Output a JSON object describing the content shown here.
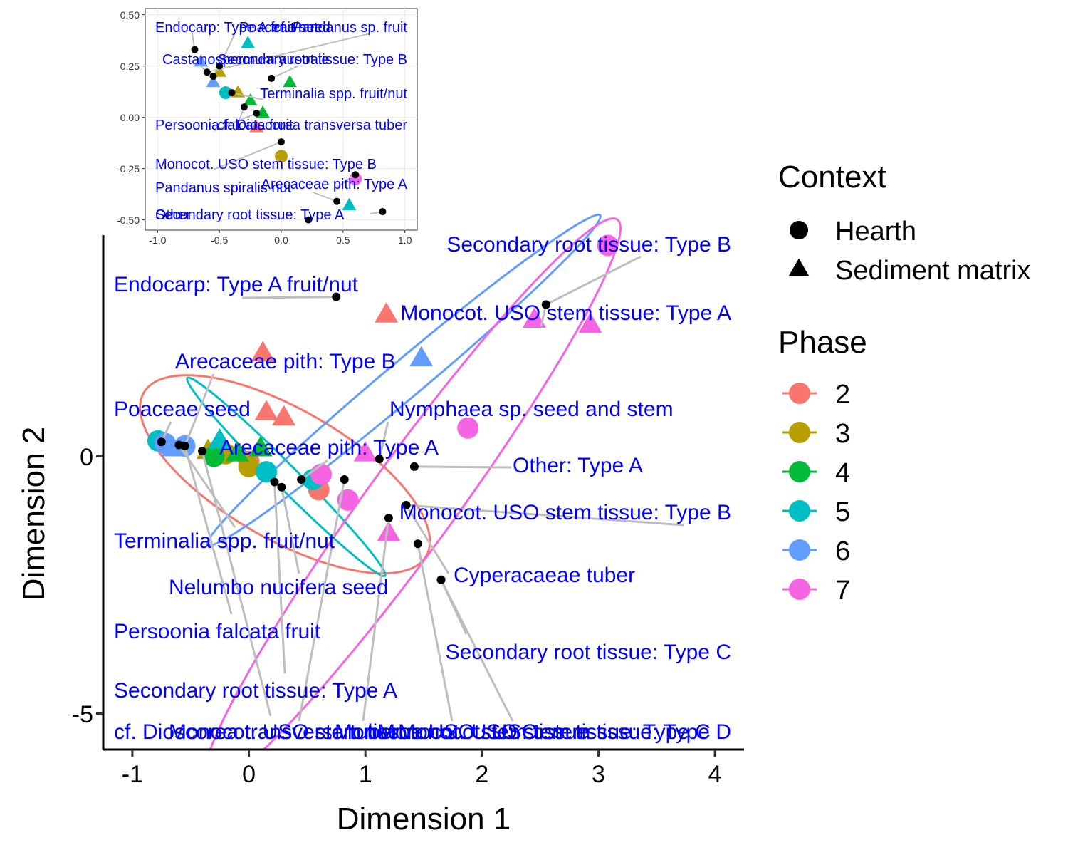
{
  "chart_data": [
    {
      "id": "main",
      "type": "scatter",
      "xlabel": "Dimension 1",
      "ylabel": "Dimension 2",
      "xlim": [
        -1.25,
        4.25
      ],
      "ylim": [
        -5.7,
        4.3
      ],
      "x_ticks": [
        -1,
        0,
        1,
        2,
        3,
        4
      ],
      "x_tick_labels": [
        "-1",
        "0",
        "1",
        "2",
        "3",
        "4"
      ],
      "y_ticks": [
        -5,
        0
      ],
      "y_tick_labels": [
        "-5",
        "0"
      ],
      "grid": false,
      "ellipses": [
        {
          "phase": "2",
          "cx": 0.31,
          "cy": -0.35,
          "rx": 1.4,
          "ry": 1.4,
          "angle": -30
        },
        {
          "phase": "5",
          "cx": 0.32,
          "cy": -0.4,
          "rx": 1.2,
          "ry": 0.25,
          "angle": -45
        },
        {
          "phase": "6",
          "cx": 1.33,
          "cy": 1.48,
          "rx": 2.2,
          "ry": 0.4,
          "angle": 40
        },
        {
          "phase": "7",
          "cx": 1.4,
          "cy": -0.9,
          "rx": 3.0,
          "ry": 0.95,
          "angle": 54
        }
      ],
      "series": [
        {
          "phase": "2",
          "context": "Sediment matrix",
          "x": [
            0.12,
            1.18,
            0.15,
            0.3
          ],
          "y": [
            2.0,
            2.75,
            0.85,
            0.75
          ]
        },
        {
          "phase": "2",
          "context": "Hearth",
          "x": [
            0.6,
            0.0
          ],
          "y": [
            -0.65,
            -0.1
          ]
        },
        {
          "phase": "3",
          "context": "Hearth",
          "x": [
            -0.2,
            0.0
          ],
          "y": [
            0.05,
            -0.2
          ]
        },
        {
          "phase": "3",
          "context": "Sediment matrix",
          "x": [
            -0.35
          ],
          "y": [
            0.1
          ]
        },
        {
          "phase": "4",
          "context": "Sediment matrix",
          "x": [
            0.1,
            -0.1
          ],
          "y": [
            0.15,
            0.05
          ]
        },
        {
          "phase": "4",
          "context": "Hearth",
          "x": [
            -0.3
          ],
          "y": [
            0.0
          ]
        },
        {
          "phase": "5",
          "context": "Hearth",
          "x": [
            -0.78,
            0.15,
            0.55
          ],
          "y": [
            0.3,
            -0.3,
            -0.45
          ]
        },
        {
          "phase": "5",
          "context": "Sediment matrix",
          "x": [
            -0.25
          ],
          "y": [
            0.3
          ]
        },
        {
          "phase": "6",
          "context": "Hearth",
          "x": [
            -0.72,
            -0.55
          ],
          "y": [
            0.25,
            0.2
          ]
        },
        {
          "phase": "6",
          "context": "Sediment matrix",
          "x": [
            1.48,
            -0.65
          ],
          "y": [
            1.9,
            0.15
          ]
        },
        {
          "phase": "7",
          "context": "Sediment matrix",
          "x": [
            2.45,
            2.93,
            1.0,
            1.2
          ],
          "y": [
            2.65,
            2.55,
            0.05,
            -1.5
          ]
        },
        {
          "phase": "7",
          "context": "Hearth",
          "x": [
            3.08,
            1.88,
            0.62,
            0.85
          ],
          "y": [
            4.1,
            0.55,
            -0.35,
            -0.85
          ]
        }
      ],
      "taxa_points": [
        {
          "label": "Secondary root tissue: Type B",
          "x": 2.55,
          "y": 2.95
        },
        {
          "label": "Endocarp: Type A fruit/nut",
          "x": 0.75,
          "y": 3.1
        },
        {
          "label": "Monocot. USO stem tissue: Type A",
          "x": 2.55,
          "y": 2.95
        },
        {
          "label": "Arecaceae pith: Type B",
          "x": -0.55,
          "y": 0.2
        },
        {
          "label": "Poaceae seed",
          "x": -0.75,
          "y": 0.28
        },
        {
          "label": "Nymphaea sp. seed and stem",
          "x": 1.12,
          "y": -0.05
        },
        {
          "label": "Arecaceae pith: Type A",
          "x": 0.45,
          "y": -0.45
        },
        {
          "label": "Other: Type A",
          "x": 1.42,
          "y": -0.2
        },
        {
          "label": "Monocot. USO stem tissue: Type B",
          "x": 1.35,
          "y": -0.95
        },
        {
          "label": "Terminalia spp. fruit/nut",
          "x": -0.6,
          "y": 0.22
        },
        {
          "label": "Cyperacaeae tuber",
          "x": 1.35,
          "y": -0.95
        },
        {
          "label": "Nelumbo nucifera seed",
          "x": 0.28,
          "y": -0.6
        },
        {
          "label": "Persoonia falcata fruit",
          "x": -0.55,
          "y": 0.2
        },
        {
          "label": "Secondary root tissue: Type C",
          "x": 1.65,
          "y": -2.4
        },
        {
          "label": "Secondary root tissue: Type A",
          "x": 0.22,
          "y": -0.5
        },
        {
          "label": "cf. Dioscorea transversa tuber",
          "x": -0.4,
          "y": 0.1
        },
        {
          "label": "Monocot. USO stem tissue",
          "x": 0.82,
          "y": -0.45
        },
        {
          "label": "Monocot. USO stem tissue",
          "x": 1.2,
          "y": -1.2
        },
        {
          "label": "Monocot. USO stem tissue: Type C",
          "x": 1.45,
          "y": -1.7
        },
        {
          "label": "Monocot. USO stem tissue: Type D",
          "x": 1.65,
          "y": -2.4
        }
      ]
    },
    {
      "id": "inset",
      "type": "scatter",
      "xlim": [
        -1.1,
        1.1
      ],
      "ylim": [
        -0.55,
        0.53
      ],
      "x_ticks": [
        -1.0,
        -0.5,
        0.0,
        0.5,
        1.0
      ],
      "x_tick_labels": [
        "-1.0",
        "-0.5",
        "0.0",
        "0.5",
        "1.0"
      ],
      "y_ticks": [
        0.5,
        0.25,
        0.0,
        -0.25,
        -0.5
      ],
      "y_tick_labels": [
        "0.50",
        "0.25",
        "0.00",
        "-0.25",
        "-0.50"
      ],
      "grid": true,
      "series": [
        {
          "phase": "6",
          "context": "Sediment matrix",
          "x": [
            -0.65,
            -0.55
          ],
          "y": [
            0.27,
            0.17
          ]
        },
        {
          "phase": "3",
          "context": "Sediment matrix",
          "x": [
            -0.5,
            -0.35
          ],
          "y": [
            0.22,
            0.12
          ]
        },
        {
          "phase": "5",
          "context": "Sediment matrix",
          "x": [
            -0.27,
            0.55
          ],
          "y": [
            0.36,
            -0.43
          ]
        },
        {
          "phase": "4",
          "context": "Sediment matrix",
          "x": [
            0.07,
            -0.25,
            -0.15
          ],
          "y": [
            0.17,
            0.08,
            0.02
          ]
        },
        {
          "phase": "2",
          "context": "Sediment matrix",
          "x": [
            -0.2
          ],
          "y": [
            -0.05
          ]
        },
        {
          "phase": "3",
          "context": "Hearth",
          "x": [
            0.0
          ],
          "y": [
            -0.19
          ]
        },
        {
          "phase": "7",
          "context": "Hearth",
          "x": [
            0.6
          ],
          "y": [
            -0.3
          ]
        },
        {
          "phase": "5",
          "context": "Hearth",
          "x": [
            -0.45
          ],
          "y": [
            0.12
          ]
        }
      ],
      "taxa_points": [
        {
          "label": "Endocarp: Type A fruit/nut",
          "x": -0.7,
          "y": 0.33
        },
        {
          "label": "Poaceae seed",
          "x": -0.5,
          "y": 0.25
        },
        {
          "label": "cf. Pandanus sp. fruit",
          "x": -0.6,
          "y": 0.22
        },
        {
          "label": "Castanospermum australe",
          "x": -0.55,
          "y": 0.2
        },
        {
          "label": "Secondary root tissue: Type B",
          "x": -0.08,
          "y": 0.19
        },
        {
          "label": "Terminalia spp. fruit/nut",
          "x": -0.4,
          "y": 0.12
        },
        {
          "label": "Persoonia falcata fruit",
          "x": -0.2,
          "y": 0.02
        },
        {
          "label": "cf. Dioscorea transversa tuber",
          "x": -0.3,
          "y": 0.05
        },
        {
          "label": "Monocot. USO stem tissue: Type B",
          "x": 0.0,
          "y": -0.12
        },
        {
          "label": "Pandanus spiralis nut",
          "x": 0.45,
          "y": -0.41
        },
        {
          "label": "Arecaceae pith: Type A",
          "x": 0.6,
          "y": -0.28
        },
        {
          "label": "Secondary root tissue: Type A",
          "x": 0.82,
          "y": -0.46
        },
        {
          "label": "Other",
          "x": 0.22,
          "y": -0.5
        }
      ]
    }
  ],
  "legend": {
    "context_title": "Context",
    "context_items": [
      {
        "label": "Hearth",
        "shape": "circle"
      },
      {
        "label": "Sediment matrix",
        "shape": "triangle"
      }
    ],
    "phase_title": "Phase",
    "phase_items": [
      {
        "label": "2",
        "color": "#F8766D"
      },
      {
        "label": "3",
        "color": "#B79F00"
      },
      {
        "label": "4",
        "color": "#00BA38"
      },
      {
        "label": "5",
        "color": "#00BFC4"
      },
      {
        "label": "6",
        "color": "#619CFF"
      },
      {
        "label": "7",
        "color": "#F564E3"
      }
    ]
  },
  "colors": {
    "label_text": "#0000ff",
    "leader_line": "#bebebe",
    "taxon_point": "#000000"
  }
}
